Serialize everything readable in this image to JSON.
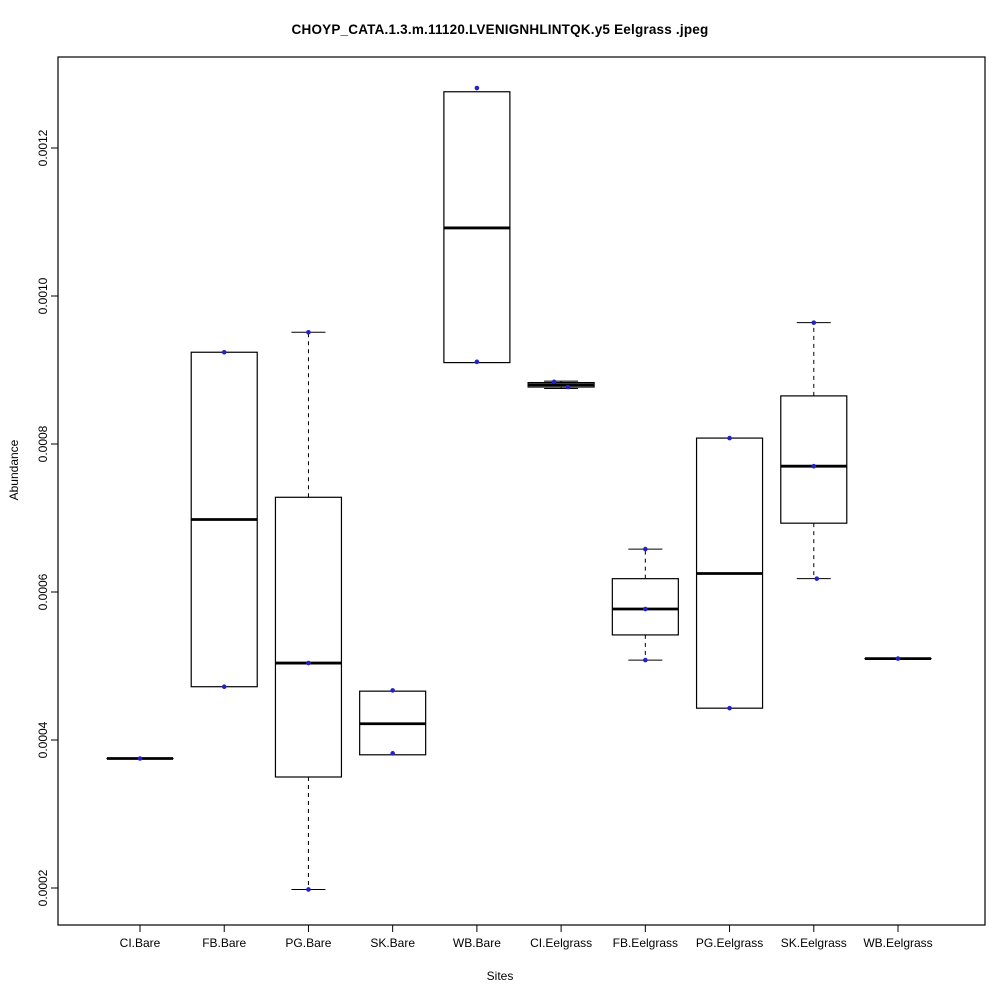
{
  "chart_data": {
    "type": "boxplot",
    "title": "CHOYP_CATA.1.3.m.11120.LVENIGNHLINTQK.y5 Eelgrass .jpeg",
    "xlabel": "Sites",
    "ylabel": "Abundance",
    "ylim": [
      0.00015,
      0.00133
    ],
    "grid": false,
    "legend": null,
    "background": "#ffffff",
    "box_color": "#000000",
    "point_color": "#2222cc",
    "yticks": [
      0.0002,
      0.0004,
      0.0006,
      0.0008,
      0.001,
      0.0012
    ],
    "ytick_labels": [
      "0.0002",
      "0.0004",
      "0.0006",
      "0.0008",
      "0.0010",
      "0.0012"
    ],
    "categories": [
      "CI.Bare",
      "FB.Bare",
      "PG.Bare",
      "SK.Bare",
      "WB.Bare",
      "CI.Eelgrass",
      "FB.Eelgrass",
      "PG.Eelgrass",
      "SK.Eelgrass",
      "WB.Eelgrass"
    ],
    "boxes": [
      {
        "site": "CI.Bare",
        "min": 0.000375,
        "q1": 0.000375,
        "median": 0.000375,
        "q3": 0.000375,
        "max": 0.000375,
        "points": [
          {
            "v": 0.000375,
            "dx": 0
          }
        ]
      },
      {
        "site": "FB.Bare",
        "min": 0.000472,
        "q1": 0.000472,
        "median": 0.000698,
        "q3": 0.000924,
        "max": 0.000924,
        "points": [
          {
            "v": 0.000472,
            "dx": 0
          },
          {
            "v": 0.000924,
            "dx": 0
          }
        ]
      },
      {
        "site": "PG.Bare",
        "min": 0.000198,
        "q1": 0.00035,
        "median": 0.000504,
        "q3": 0.000728,
        "max": 0.000951,
        "points": [
          {
            "v": 0.000198,
            "dx": 0
          },
          {
            "v": 0.000504,
            "dx": 0
          },
          {
            "v": 0.000951,
            "dx": 0
          }
        ]
      },
      {
        "site": "SK.Bare",
        "min": 0.00038,
        "q1": 0.00038,
        "median": 0.000422,
        "q3": 0.000466,
        "max": 0.000466,
        "points": [
          {
            "v": 0.000382,
            "dx": 0
          },
          {
            "v": 0.000467,
            "dx": 0
          }
        ]
      },
      {
        "site": "WB.Bare",
        "min": 0.00091,
        "q1": 0.00091,
        "median": 0.001092,
        "q3": 0.001276,
        "max": 0.001276,
        "points": [
          {
            "v": 0.000911,
            "dx": 0
          },
          {
            "v": 0.001281,
            "dx": 0
          }
        ]
      },
      {
        "site": "CI.Eelgrass",
        "min": 0.000875,
        "q1": 0.000877,
        "median": 0.00088,
        "q3": 0.000883,
        "max": 0.000885,
        "points": [
          {
            "v": 0.000884,
            "dx": -7
          },
          {
            "v": 0.000877,
            "dx": 7
          }
        ]
      },
      {
        "site": "FB.Eelgrass",
        "min": 0.000508,
        "q1": 0.000542,
        "median": 0.000577,
        "q3": 0.000618,
        "max": 0.000658,
        "points": [
          {
            "v": 0.000508,
            "dx": 0
          },
          {
            "v": 0.000577,
            "dx": 0
          },
          {
            "v": 0.000658,
            "dx": 0
          }
        ]
      },
      {
        "site": "PG.Eelgrass",
        "min": 0.000443,
        "q1": 0.000443,
        "median": 0.000625,
        "q3": 0.000808,
        "max": 0.000808,
        "points": [
          {
            "v": 0.000443,
            "dx": 0
          },
          {
            "v": 0.000808,
            "dx": 0
          }
        ]
      },
      {
        "site": "SK.Eelgrass",
        "min": 0.000618,
        "q1": 0.000693,
        "median": 0.00077,
        "q3": 0.000865,
        "max": 0.000964,
        "points": [
          {
            "v": 0.000618,
            "dx": 3
          },
          {
            "v": 0.00077,
            "dx": 0
          },
          {
            "v": 0.000964,
            "dx": 0
          }
        ]
      },
      {
        "site": "WB.Eelgrass",
        "min": 0.00051,
        "q1": 0.00051,
        "median": 0.00051,
        "q3": 0.00051,
        "max": 0.00051,
        "points": [
          {
            "v": 0.00051,
            "dx": 0
          }
        ]
      }
    ]
  }
}
